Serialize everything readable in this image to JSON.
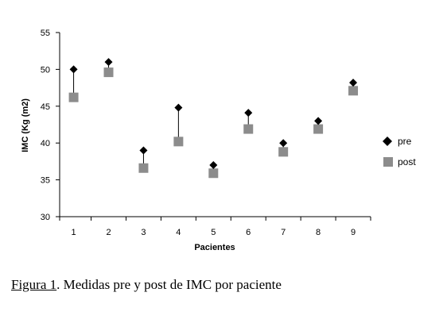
{
  "chart_data": {
    "type": "scatter",
    "title": "",
    "xlabel": "Pacientes",
    "ylabel": "IMC (Kg (m2)",
    "x": [
      1,
      2,
      3,
      4,
      5,
      6,
      7,
      8,
      9
    ],
    "xticks": [
      "1",
      "2",
      "3",
      "4",
      "5",
      "6",
      "7",
      "8",
      "9"
    ],
    "yticks": [
      "30",
      "35",
      "40",
      "45",
      "50",
      "55"
    ],
    "ylim": [
      30,
      55
    ],
    "xlim": [
      0.6,
      9.5
    ],
    "grid": false,
    "legend_position": "right",
    "series": [
      {
        "name": "pre",
        "marker": "diamond",
        "color": "#000000",
        "values": [
          50,
          51,
          39,
          44.8,
          37,
          44.1,
          40,
          43,
          48.2
        ]
      },
      {
        "name": "post",
        "marker": "square",
        "color": "#8c8c8c",
        "values": [
          46.2,
          49.6,
          36.6,
          40.2,
          35.9,
          41.9,
          38.8,
          41.9,
          47.1
        ]
      }
    ]
  },
  "caption": {
    "label": "Figura 1",
    "text": ". Medidas pre y post de IMC por paciente"
  }
}
